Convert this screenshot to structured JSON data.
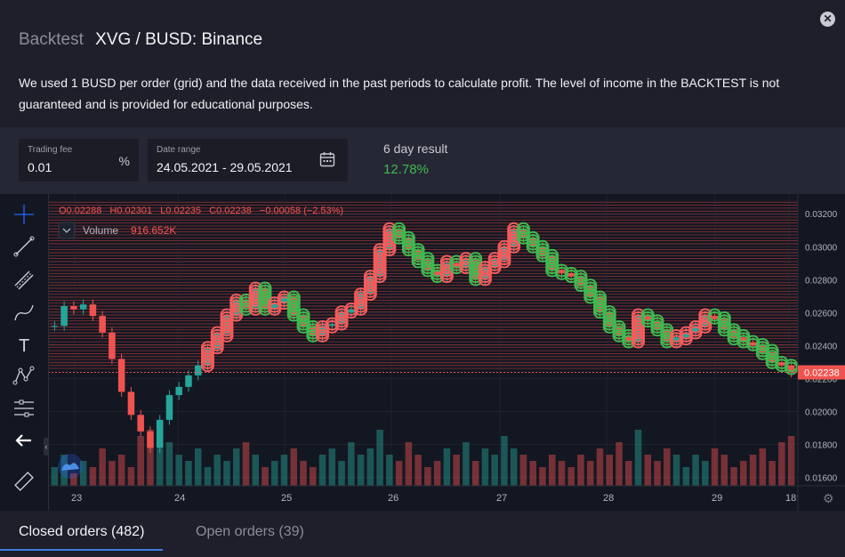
{
  "header": {
    "title_prefix": "Backtest",
    "title": "XVG / BUSD: Binance",
    "description": "We used 1 BUSD per order (grid) and the data received in the past periods to calculate profit. The level of income in the BACKTEST is not guaranteed and is provided for educational purposes.",
    "close_icon": "close-icon"
  },
  "params": {
    "trading_fee": {
      "label": "Trading fee",
      "value": "0.01",
      "suffix": "%"
    },
    "date_range": {
      "label": "Date range",
      "value": "24.05.2021 - 29.05.2021",
      "icon": "calendar-icon"
    },
    "result": {
      "label": "6 day result",
      "value": "12.78%"
    }
  },
  "chart": {
    "ohlc": {
      "o": "O0.02288",
      "h": "H0.02301",
      "l": "L0.02235",
      "c": "C0.02238",
      "change": "−0.00058 (−2.53%)"
    },
    "volume": {
      "label": "Volume",
      "value": "916.652K"
    },
    "last_price": "0.02238",
    "colors": {
      "up": "#26a69a",
      "down": "#ef5350",
      "buy": "#3fb950",
      "sell": "#f45c5c",
      "grid_line": "#b23a3a"
    }
  },
  "chart_data": {
    "type": "candlestick",
    "title": "XVG / BUSD",
    "x_ticks": [
      "23",
      "24",
      "25",
      "26",
      "27",
      "28",
      "29",
      "18:"
    ],
    "y_ticks": [
      "0.03200",
      "0.03000",
      "0.02800",
      "0.02600",
      "0.02400",
      "0.02200",
      "0.02000",
      "0.01800",
      "0.01600"
    ],
    "ylim": [
      0.0155,
      0.0332
    ],
    "grid_levels": [
      0.02262,
      0.0228,
      0.02298,
      0.02316,
      0.02334,
      0.02352,
      0.0237,
      0.02388,
      0.02406,
      0.02424,
      0.02442,
      0.0246,
      0.02478,
      0.02496,
      0.02514,
      0.02532,
      0.0255,
      0.02568,
      0.02586,
      0.02604,
      0.02622,
      0.0264,
      0.02658,
      0.02676,
      0.02694,
      0.02712,
      0.0273,
      0.02748,
      0.02766,
      0.02784,
      0.02802,
      0.0282,
      0.02838,
      0.02856,
      0.02874,
      0.02892,
      0.0291,
      0.02928,
      0.02946,
      0.02964,
      0.02982,
      0.03,
      0.03018,
      0.03036,
      0.03054,
      0.03072,
      0.0309,
      0.03108,
      0.03126,
      0.03144,
      0.03162,
      0.0318,
      0.03198,
      0.03216,
      0.03234,
      0.03252,
      0.0327
    ],
    "price_path": [
      0.0252,
      0.0264,
      0.0262,
      0.0265,
      0.0258,
      0.0248,
      0.0232,
      0.0212,
      0.0198,
      0.0188,
      0.0178,
      0.0195,
      0.021,
      0.0215,
      0.0222,
      0.0228,
      0.0238,
      0.0247,
      0.0258,
      0.0268,
      0.0263,
      0.0275,
      0.0262,
      0.0266,
      0.027,
      0.0258,
      0.0252,
      0.0246,
      0.0252,
      0.0253,
      0.026,
      0.0262,
      0.0272,
      0.0282,
      0.0298,
      0.031,
      0.0305,
      0.0298,
      0.0292,
      0.0286,
      0.0282,
      0.029,
      0.0287,
      0.0292,
      0.028,
      0.0288,
      0.0292,
      0.03,
      0.031,
      0.0305,
      0.03,
      0.0294,
      0.0286,
      0.0284,
      0.0282,
      0.0276,
      0.027,
      0.026,
      0.0252,
      0.0246,
      0.0242,
      0.0258,
      0.0255,
      0.025,
      0.0242,
      0.0245,
      0.0248,
      0.0252,
      0.0258,
      0.0256,
      0.025,
      0.0245,
      0.0242,
      0.024,
      0.0236,
      0.023,
      0.0228,
      0.02238
    ],
    "volumes": [
      0.3,
      0.5,
      0.2,
      0.4,
      0.3,
      0.6,
      0.4,
      0.5,
      0.3,
      0.8,
      0.9,
      0.6,
      0.7,
      0.5,
      0.4,
      0.6,
      0.3,
      0.5,
      0.4,
      0.6,
      0.7,
      0.5,
      0.3,
      0.4,
      0.5,
      0.6,
      0.4,
      0.3,
      0.5,
      0.6,
      0.4,
      0.7,
      0.5,
      0.6,
      0.9,
      0.5,
      0.4,
      0.7,
      0.5,
      0.3,
      0.4,
      0.6,
      0.5,
      0.7,
      0.4,
      0.6,
      0.5,
      0.8,
      0.6,
      0.5,
      0.4,
      0.3,
      0.5,
      0.4,
      0.3,
      0.5,
      0.4,
      0.6,
      0.5,
      0.7,
      0.4,
      0.9,
      0.5,
      0.4,
      0.6,
      0.5,
      0.3,
      0.5,
      0.4,
      0.6,
      0.5,
      0.3,
      0.4,
      0.5,
      0.6,
      0.4,
      0.7,
      0.8
    ]
  },
  "tabs": [
    {
      "label": "Closed orders (482)"
    },
    {
      "label": "Open orders (39)"
    }
  ]
}
